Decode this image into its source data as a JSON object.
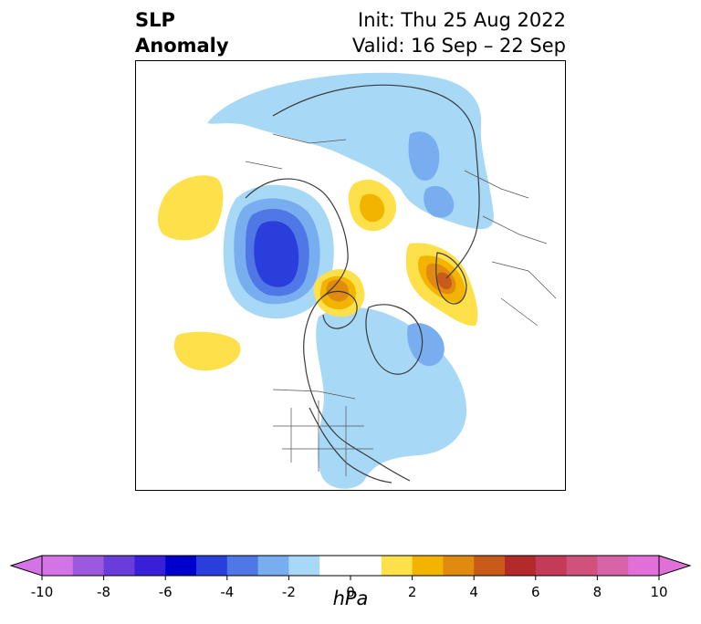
{
  "title": {
    "left_line1": "SLP",
    "left_line2": "Anomaly",
    "right_line1": "Init: Thu 25 Aug 2022",
    "right_line2": "Valid: 16 Sep – 22 Sep"
  },
  "colorbar": {
    "unit": "hPa",
    "extend": "both",
    "levels": [
      -10,
      -9,
      -8,
      -7,
      -6,
      -5,
      -4,
      -3,
      -2,
      -1,
      1,
      2,
      3,
      4,
      5,
      6,
      7,
      8,
      9,
      10
    ],
    "colors": [
      "#d473e6",
      "#9b59e0",
      "#6a3ddb",
      "#3a1fd9",
      "#0000cd",
      "#2a3edb",
      "#4f78e6",
      "#78aef0",
      "#a7d9f7",
      "#ffffff",
      "#fde04a",
      "#f3b400",
      "#e18a10",
      "#c85a1a",
      "#b22a2a",
      "#c43b5a",
      "#d0527c",
      "#d864a8",
      "#e070d8"
    ],
    "under_color": "#d473e6",
    "over_color": "#e070d8",
    "tick_labels": [
      "-10",
      "-8",
      "-6",
      "-4",
      "-2",
      "0",
      "2",
      "4",
      "6",
      "8",
      "10"
    ]
  },
  "map": {
    "projection": "north polar stereographic",
    "features": [
      "coastlines",
      "country borders",
      "US state borders"
    ],
    "anomalies": [
      {
        "name": "low-central-canada",
        "sign": "negative",
        "peak_hpa": -6
      },
      {
        "name": "low-arctic-siberia-ridge",
        "sign": "negative",
        "peak_hpa": -3
      },
      {
        "name": "low-eastern-north-america",
        "sign": "negative",
        "peak_hpa": -3
      },
      {
        "name": "high-hudson-bay",
        "sign": "positive",
        "peak_hpa": 4
      },
      {
        "name": "high-scandinavia",
        "sign": "positive",
        "peak_hpa": 5
      },
      {
        "name": "high-east-siberia",
        "sign": "positive",
        "peak_hpa": 3
      },
      {
        "name": "high-north-pacific-west",
        "sign": "positive",
        "peak_hpa": 2
      },
      {
        "name": "high-north-pacific-south",
        "sign": "positive",
        "peak_hpa": 2
      }
    ]
  }
}
